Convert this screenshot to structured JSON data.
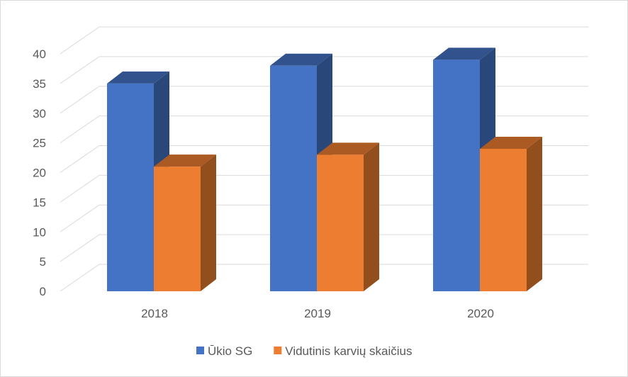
{
  "chart_data": {
    "type": "bar",
    "title": "",
    "xlabel": "",
    "ylabel": "",
    "categories": [
      "2018",
      "2019",
      "2020"
    ],
    "ylim": [
      0,
      40
    ],
    "y_ticks": [
      0,
      5,
      10,
      15,
      20,
      25,
      30,
      35,
      40
    ],
    "grid": true,
    "three_d": true,
    "legend_position": "bottom",
    "series": [
      {
        "name": "Ūkio SG",
        "values": [
          35,
          38,
          39
        ],
        "color": "#4472c4"
      },
      {
        "name": "Vidutinis karvių skaičius",
        "values": [
          21,
          23,
          24
        ],
        "color": "#ed7d31"
      }
    ]
  }
}
